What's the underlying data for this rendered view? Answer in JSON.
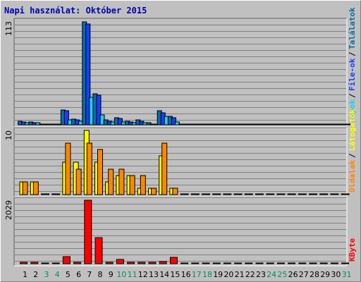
{
  "colors": {
    "background": "#c0c0c0",
    "hits": "#0b6ba8",
    "files": "#1540ff",
    "pages": "#22ccee",
    "visits": "#ffff00",
    "sites": "#ff8800",
    "kbytes": "#ff0000",
    "weekday_label": "#000000",
    "weekend_label": "#009060",
    "title": "#0000aa"
  },
  "chart_data": {
    "type": "bar",
    "title": "Napi használat: Október 2015",
    "days": [
      "1",
      "2",
      "3",
      "4",
      "5",
      "6",
      "7",
      "8",
      "9",
      "10",
      "11",
      "12",
      "13",
      "14",
      "15",
      "16",
      "17",
      "18",
      "19",
      "20",
      "21",
      "22",
      "23",
      "24",
      "25",
      "26",
      "27",
      "28",
      "29",
      "30",
      "31"
    ],
    "weekend_days": [
      "3",
      "4",
      "10",
      "11",
      "17",
      "18",
      "24",
      "25",
      "31"
    ],
    "panels": [
      {
        "name": "top",
        "ymax_label": "113",
        "ylim": [
          0,
          113
        ],
        "legend": [
          "Találatok",
          "File-ok",
          "Lapok"
        ],
        "legend_colors": [
          "hits",
          "files",
          "pages"
        ],
        "series": [
          {
            "name": "Találatok",
            "color": "hits",
            "values": [
              4,
              3,
              0,
              0,
              16,
              6,
              112,
              34,
              5,
              8,
              4,
              5,
              2,
              15,
              9,
              0,
              0,
              0,
              0,
              0,
              0,
              0,
              0,
              0,
              0,
              0,
              0,
              0,
              0,
              0,
              0
            ]
          },
          {
            "name": "File-ok",
            "color": "files",
            "values": [
              3,
              2,
              0,
              0,
              15,
              5,
              110,
              32,
              4,
              7,
              3,
              4,
              1,
              13,
              8,
              0,
              0,
              0,
              0,
              0,
              0,
              0,
              0,
              0,
              0,
              0,
              0,
              0,
              0,
              0,
              0
            ]
          },
          {
            "name": "Lapok",
            "color": "pages",
            "values": [
              2,
              2,
              0,
              0,
              5,
              4,
              30,
              11,
              3,
              3,
              2,
              2,
              1,
              9,
              3,
              0,
              0,
              0,
              0,
              0,
              0,
              0,
              0,
              0,
              0,
              0,
              0,
              0,
              0,
              0,
              0
            ]
          }
        ]
      },
      {
        "name": "middle",
        "ymax_label": "10",
        "ylim": [
          0,
          10
        ],
        "legend": [
          "Látogatók",
          "Oldalak"
        ],
        "legend_colors": [
          "visits",
          "sites"
        ],
        "series": [
          {
            "name": "Látogatók",
            "color": "visits",
            "values": [
              2,
              2,
              0,
              0,
              5,
              5,
              10,
              5,
              2,
              3,
              3,
              1,
              1,
              6,
              1,
              0,
              0,
              0,
              0,
              0,
              0,
              0,
              0,
              0,
              0,
              0,
              0,
              0,
              0,
              0,
              0
            ]
          },
          {
            "name": "Oldalak",
            "color": "sites",
            "values": [
              2,
              2,
              0,
              0,
              8,
              4,
              8,
              7,
              4,
              4,
              3,
              3,
              1,
              8,
              1,
              0,
              0,
              0,
              0,
              0,
              0,
              0,
              0,
              0,
              0,
              0,
              0,
              0,
              0,
              0,
              0
            ]
          }
        ]
      },
      {
        "name": "bottom",
        "ymax_label": "2029",
        "ylim": [
          0,
          2029
        ],
        "legend": [
          "KByte"
        ],
        "legend_colors": [
          "kbytes"
        ],
        "series": [
          {
            "name": "KByte",
            "color": "kbytes",
            "values": [
              40,
              40,
              0,
              0,
              220,
              40,
              2029,
              840,
              40,
              140,
              40,
              40,
              40,
              70,
              200,
              0,
              0,
              0,
              0,
              0,
              0,
              0,
              0,
              0,
              0,
              0,
              0,
              0,
              0,
              0,
              0
            ]
          }
        ]
      }
    ]
  }
}
